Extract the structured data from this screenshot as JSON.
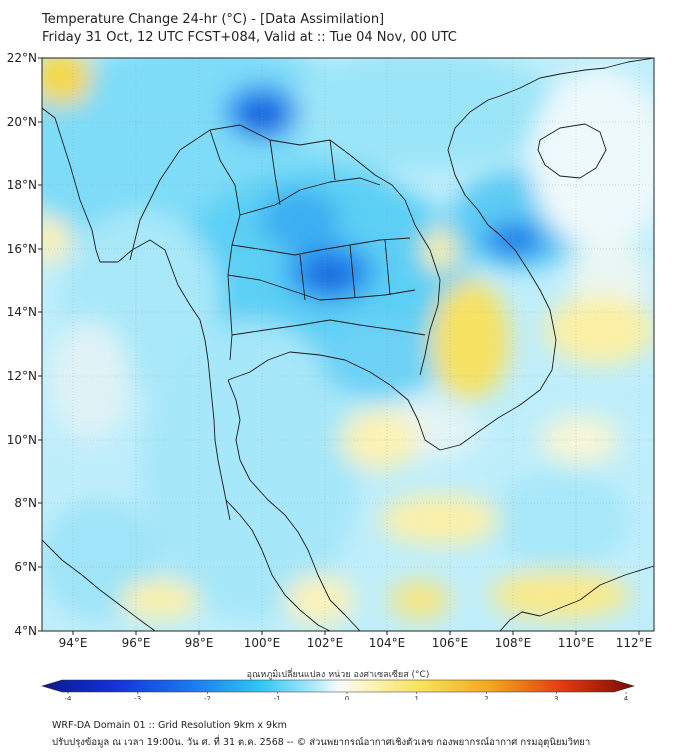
{
  "title": {
    "line1": "Temperature Change 24-hr (°C) - [Data Assimilation]",
    "line2": "Friday 31 Oct, 12 UTC FCST+084, Valid at :: Tue 04 Nov, 00 UTC"
  },
  "map": {
    "lat_labels": [
      "22°N",
      "20°N",
      "18°N",
      "16°N",
      "14°N",
      "12°N",
      "10°N",
      "8°N",
      "6°N",
      "4°N"
    ],
    "lon_labels": [
      "94°E",
      "96°E",
      "98°E",
      "100°E",
      "102°E",
      "104°E",
      "106°E",
      "108°E",
      "110°E",
      "112°E"
    ],
    "lat_range": [
      4,
      22
    ],
    "lon_range": [
      93,
      112.5
    ]
  },
  "colorbar": {
    "label": "อุณหภูมิเปลี่ยนแปลง หน่วย องศาเซลเซียส (°C)",
    "ticks": [
      "-4",
      "-3",
      "-2",
      "-1",
      "0",
      "1",
      "2",
      "3",
      "4"
    ],
    "range": [
      -4,
      4
    ]
  },
  "footer": {
    "line1": "WRF-DA Domain 01 :: Grid Resolution 9km x 9km",
    "line2": "ปรับปรุงข้อมูล ณ เวลา 19:00น. วัน ศ. ที่ 31 ต.ค. 2568 -- © ส่วนพยากรณ์อากาศเชิงตัวเลข กองพยากรณ์อากาศ กรมอุตุนิยมวิทยา"
  },
  "colors": {
    "cold_strong": "#0f4fd6",
    "cold_mid": "#1e9ff0",
    "cool": "#6fd3f7",
    "neutral": "#e6f6fb",
    "warm": "#fbf1a8",
    "warm_mid": "#f5e25e"
  }
}
